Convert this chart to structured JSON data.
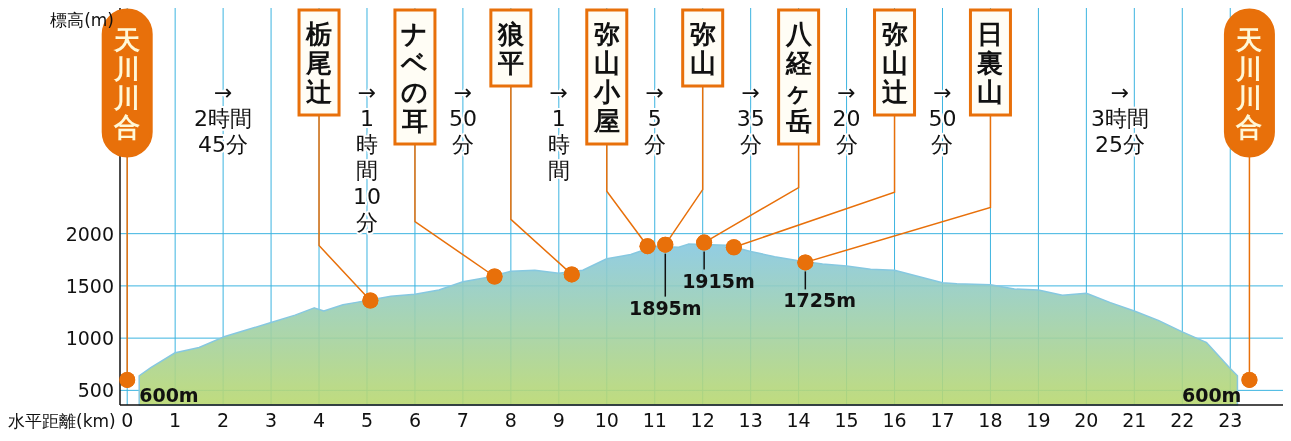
{
  "chart_data": {
    "type": "area",
    "xlabel": "水平距離(km)",
    "ylabel": "標高(m)",
    "xlim": [
      -0.15,
      24.1
    ],
    "ylim": [
      360,
      4160
    ],
    "xticks": [
      0,
      1,
      2,
      3,
      4,
      5,
      6,
      7,
      8,
      9,
      10,
      11,
      12,
      13,
      14,
      15,
      16,
      17,
      18,
      19,
      20,
      21,
      22,
      23
    ],
    "yticks": [
      500,
      1000,
      1500,
      2000
    ],
    "grid": true,
    "series": [
      {
        "color": "#86c8e0",
        "x": [
          0.25,
          0.5,
          1,
          1.5,
          2,
          2.5,
          3,
          3.5,
          3.9,
          4.1,
          4.5,
          4.75,
          5.5,
          6,
          6.5,
          7,
          7.5,
          8,
          8.5,
          9,
          9.5,
          10,
          10.5,
          11,
          11.5,
          11.7,
          12.5,
          13,
          13.5,
          14,
          14.5,
          15,
          15.5,
          16,
          16.5,
          17,
          17.3,
          18,
          18.5,
          19,
          19.5,
          20,
          20.5,
          21,
          21.5,
          22,
          22.5,
          23,
          23.15
        ],
        "values": [
          640,
          720,
          860,
          910,
          1010,
          1080,
          1150,
          1220,
          1290,
          1260,
          1320,
          1340,
          1400,
          1420,
          1460,
          1540,
          1580,
          1640,
          1650,
          1620,
          1650,
          1760,
          1800,
          1880,
          1870,
          1900,
          1890,
          1830,
          1780,
          1740,
          1710,
          1690,
          1660,
          1650,
          1590,
          1530,
          1520,
          1510,
          1470,
          1460,
          1410,
          1430,
          1340,
          1260,
          1170,
          1060,
          960,
          710,
          640
        ]
      },
      {
        "type": "scatter",
        "color": "#e8700a",
        "marker": "circle",
        "x": [
          0,
          5.07,
          7.66,
          9.27,
          10.85,
          11.22,
          12.03,
          12.65,
          14.14,
          23.4
        ],
        "values": [
          600,
          1360,
          1590,
          1610,
          1880,
          1895,
          1915,
          1870,
          1725,
          600
        ],
        "value_labels": [
          "600m",
          null,
          null,
          null,
          null,
          "1895m",
          "1915m",
          null,
          "1725m",
          "600m"
        ]
      }
    ],
    "annotations": [
      {
        "text": "天川川合",
        "x": 0,
        "y": 600
      },
      {
        "text": "栃尾辻",
        "x": 5.07,
        "y": 1360
      },
      {
        "text": "ナベの耳",
        "x": 7.66,
        "y": 1590
      },
      {
        "text": "狼平",
        "x": 9.27,
        "y": 1610
      },
      {
        "text": "弥山小屋",
        "x": 10.85,
        "y": 1880
      },
      {
        "text": "弥山",
        "x": 11.22,
        "y": 1895
      },
      {
        "text": "八経ヶ岳",
        "x": 12.03,
        "y": 1915
      },
      {
        "text": "弥山辻",
        "x": 12.65,
        "y": 1870
      },
      {
        "text": "日裏山",
        "x": 14.14,
        "y": 1725
      },
      {
        "text": "天川川合",
        "x": 23.4,
        "y": 600
      },
      "→2時間45分",
      "→1時間10分",
      "→50分",
      "→1時間",
      "→5分",
      "→35分",
      "→20分",
      "→50分",
      "→3時間25分"
    ]
  }
}
